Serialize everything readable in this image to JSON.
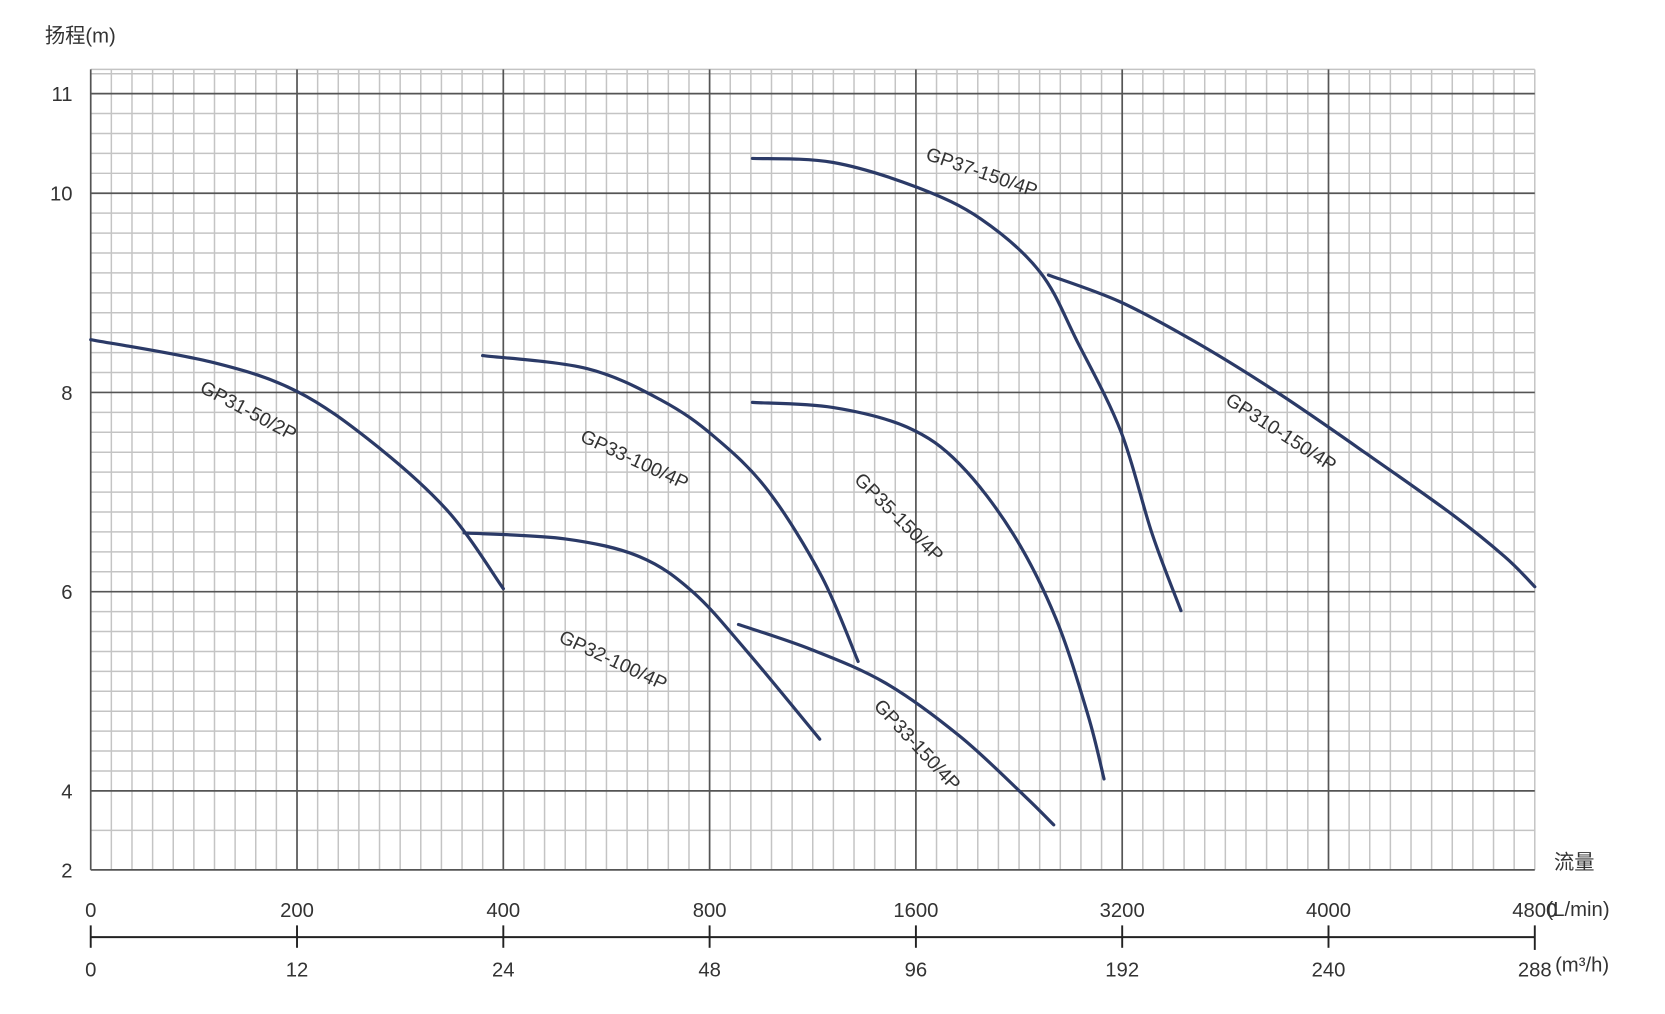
{
  "chart_data": {
    "type": "line",
    "title": "",
    "ylabel": "扬程(m)",
    "xlabel": "流量",
    "x_unit_primary": "(L/min)",
    "x_unit_secondary": "(m³/h)",
    "x_ticks_lmin": [
      0,
      200,
      400,
      800,
      1600,
      3200,
      4000,
      4800
    ],
    "x_ticks_lmin_labels": [
      "0",
      "200",
      "400",
      "800",
      "1600",
      "3200",
      "4000",
      "4800"
    ],
    "x_ticks_m3h_labels": [
      "0",
      "12",
      "24",
      "48",
      "96",
      "192",
      "240",
      "288"
    ],
    "x_scale": "piecewise (equal spacing between ticks)",
    "y_ticks": [
      2,
      4,
      6,
      8,
      10,
      11
    ],
    "y_ticks_labels": [
      "2",
      "4",
      "6",
      "8",
      "10",
      "11"
    ],
    "ylim": [
      2,
      11.2
    ],
    "xlim": [
      0,
      4800
    ],
    "grid": true,
    "series": [
      {
        "name": "GP31-50/2P",
        "x": [
          0,
          119,
          200,
          274,
          347,
          400
        ],
        "y": [
          8.53,
          8.3,
          8.01,
          7.49,
          6.8,
          6.03
        ]
      },
      {
        "name": "GP32-100/4P",
        "x": [
          362,
          520,
          665,
          769,
          945,
          1227
        ],
        "y": [
          6.59,
          6.53,
          6.35,
          5.99,
          5.4,
          4.52
        ]
      },
      {
        "name": "GP33-100/4P",
        "x": [
          380,
          562,
          707,
          821,
          1028,
          1235,
          1376
        ],
        "y": [
          8.37,
          8.24,
          7.92,
          7.55,
          7.01,
          6.15,
          5.3
        ]
      },
      {
        "name": "GP33-150/4P",
        "x": [
          912,
          1194,
          1484,
          1940,
          2437,
          2669
        ],
        "y": [
          5.67,
          5.42,
          5.08,
          4.55,
          3.89,
          3.14
        ]
      },
      {
        "name": "GP35-150/4P",
        "x": [
          966,
          1277,
          1567,
          1940,
          2354,
          2686,
          2935,
          3059
        ],
        "y": [
          7.9,
          7.85,
          7.65,
          7.28,
          6.58,
          5.73,
          4.76,
          4.12
        ]
      },
      {
        "name": "GP37-150/4P",
        "x": [
          966,
          1277,
          1608,
          2106,
          2562,
          2852,
          3192,
          3316,
          3428
        ],
        "y": [
          10.35,
          10.31,
          10.06,
          9.74,
          9.21,
          8.51,
          7.6,
          6.58,
          5.81
        ]
      },
      {
        "name": "GP310-150/4P",
        "x": [
          2628,
          3183,
          3482,
          3813,
          4145,
          4477,
          4684,
          4800
        ],
        "y": [
          9.18,
          8.91,
          8.51,
          7.98,
          7.39,
          6.78,
          6.35,
          6.05
        ]
      }
    ],
    "colors": {
      "curve": "#2b3a67",
      "grid_minor": "#c4c4c4",
      "grid_major": "#555555",
      "text": "#333333"
    }
  }
}
